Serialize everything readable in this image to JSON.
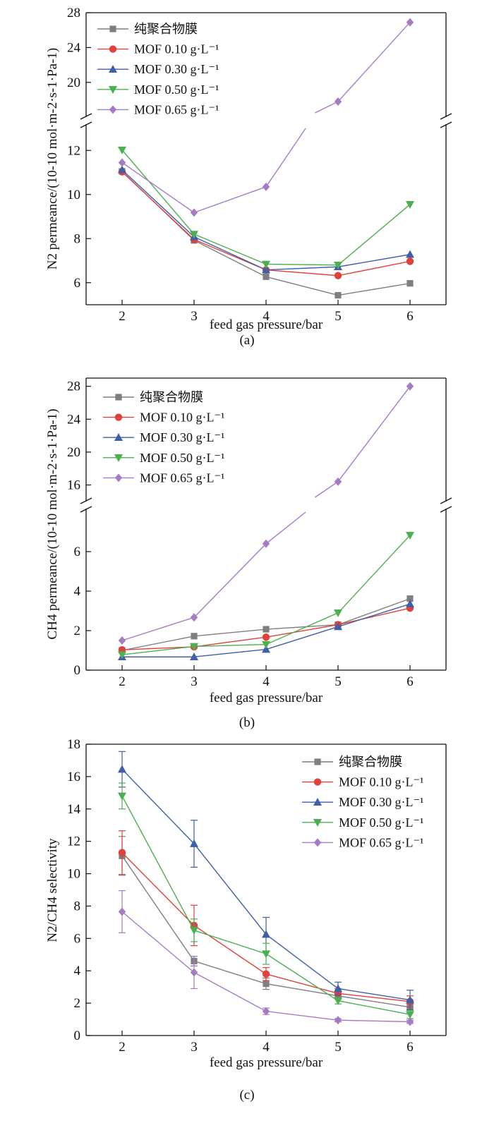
{
  "colors": {
    "pure": "#7f7f7f",
    "mof010": "#e0413a",
    "mof030": "#3f5fa8",
    "mof050": "#4caf50",
    "mof065": "#a67bc4"
  },
  "chart_data": [
    {
      "type": "line",
      "caption": "(a)",
      "xlabel": "feed gas pressure/bar",
      "ylabel": "N2 permeance/(10-10 mol·m-2·s-1·Pa-1)",
      "x": [
        2,
        3,
        4,
        5,
        6
      ],
      "xlim": [
        1.5,
        6.5
      ],
      "broken_axis": {
        "lower": {
          "range": [
            5,
            13
          ],
          "ticks": [
            6,
            8,
            10,
            12
          ]
        },
        "upper": {
          "range": [
            16.5,
            28
          ],
          "ticks": [
            20,
            24,
            28
          ]
        }
      },
      "legend_position": "top-left",
      "series": [
        {
          "name": "纯聚合物膜",
          "color_key": "pure",
          "marker": "square",
          "values": [
            11.05,
            7.92,
            6.27,
            5.43,
            5.97
          ]
        },
        {
          "name": "MOF 0.10 g·L⁻¹",
          "color_key": "mof010",
          "marker": "circle",
          "values": [
            11.03,
            7.96,
            6.58,
            6.32,
            6.97
          ]
        },
        {
          "name": "MOF 0.30 g·L⁻¹",
          "color_key": "mof030",
          "marker": "triangle-up",
          "values": [
            11.12,
            8.08,
            6.58,
            6.72,
            7.28
          ]
        },
        {
          "name": "MOF 0.50 g·L⁻¹",
          "color_key": "mof050",
          "marker": "triangle-down",
          "values": [
            12.02,
            8.2,
            6.84,
            6.8,
            9.55
          ]
        },
        {
          "name": "MOF 0.65 g·L⁻¹",
          "color_key": "mof065",
          "marker": "diamond",
          "values": [
            11.45,
            9.18,
            10.35,
            17.8,
            26.9
          ]
        }
      ]
    },
    {
      "type": "line",
      "caption": "(b)",
      "xlabel": "feed gas pressure/bar",
      "ylabel": "CH4 permeance/(10-10 mol·m-2·s-1·Pa-1)",
      "x": [
        2,
        3,
        4,
        5,
        6
      ],
      "xlim": [
        1.5,
        6.5
      ],
      "broken_axis": {
        "lower": {
          "range": [
            0,
            8
          ],
          "ticks": [
            0,
            2,
            4,
            6
          ]
        },
        "upper": {
          "range": [
            14.5,
            29
          ],
          "ticks": [
            16,
            20,
            24,
            28
          ]
        }
      },
      "legend_position": "top-left",
      "series": [
        {
          "name": "纯聚合物膜",
          "color_key": "pure",
          "marker": "square",
          "values": [
            1.0,
            1.72,
            2.07,
            2.3,
            3.62
          ]
        },
        {
          "name": "MOF 0.10 g·L⁻¹",
          "color_key": "mof010",
          "marker": "circle",
          "values": [
            1.03,
            1.18,
            1.67,
            2.3,
            3.14
          ]
        },
        {
          "name": "MOF 0.30 g·L⁻¹",
          "color_key": "mof030",
          "marker": "triangle-up",
          "values": [
            0.67,
            0.67,
            1.05,
            2.2,
            3.35
          ]
        },
        {
          "name": "MOF 0.50 g·L⁻¹",
          "color_key": "mof050",
          "marker": "triangle-down",
          "values": [
            0.78,
            1.2,
            1.3,
            2.9,
            6.83
          ]
        },
        {
          "name": "MOF 0.65 g·L⁻¹",
          "color_key": "mof065",
          "marker": "diamond",
          "values": [
            1.5,
            2.67,
            6.4,
            16.4,
            28.0
          ]
        }
      ]
    },
    {
      "type": "line",
      "caption": "(c)",
      "xlabel": "feed gas pressure/bar",
      "ylabel": "N2/CH4 selectivity",
      "x": [
        2,
        3,
        4,
        5,
        6
      ],
      "xlim": [
        1.5,
        6.5
      ],
      "ylim": [
        0,
        18
      ],
      "yticks": [
        0,
        2,
        4,
        6,
        8,
        10,
        12,
        14,
        16,
        18
      ],
      "legend_position": "top-right",
      "series": [
        {
          "name": "纯聚合物膜",
          "color_key": "pure",
          "marker": "square",
          "values": [
            11.1,
            4.6,
            3.2,
            2.45,
            1.75
          ],
          "errors": [
            1.2,
            0.3,
            0.35,
            0.2,
            0.2
          ]
        },
        {
          "name": "MOF 0.10 g·L⁻¹",
          "color_key": "mof010",
          "marker": "circle",
          "values": [
            11.3,
            6.8,
            3.8,
            2.6,
            2.1
          ],
          "errors": [
            1.35,
            1.25,
            0.4,
            0.3,
            0.35
          ]
        },
        {
          "name": "MOF 0.30 g·L⁻¹",
          "color_key": "mof030",
          "marker": "triangle-up",
          "values": [
            16.45,
            11.85,
            6.25,
            2.9,
            2.2
          ],
          "errors": [
            1.1,
            1.45,
            1.05,
            0.4,
            0.6
          ]
        },
        {
          "name": "MOF 0.50 g·L⁻¹",
          "color_key": "mof050",
          "marker": "triangle-down",
          "values": [
            14.8,
            6.5,
            5.05,
            2.15,
            1.3
          ],
          "errors": [
            0.8,
            0.7,
            0.65,
            0.2,
            0.25
          ]
        },
        {
          "name": "MOF 0.65 g·L⁻¹",
          "color_key": "mof065",
          "marker": "diamond",
          "values": [
            7.65,
            3.9,
            1.5,
            0.95,
            0.85
          ],
          "errors": [
            1.3,
            1.0,
            0.2,
            0.1,
            0.1
          ]
        }
      ]
    }
  ]
}
